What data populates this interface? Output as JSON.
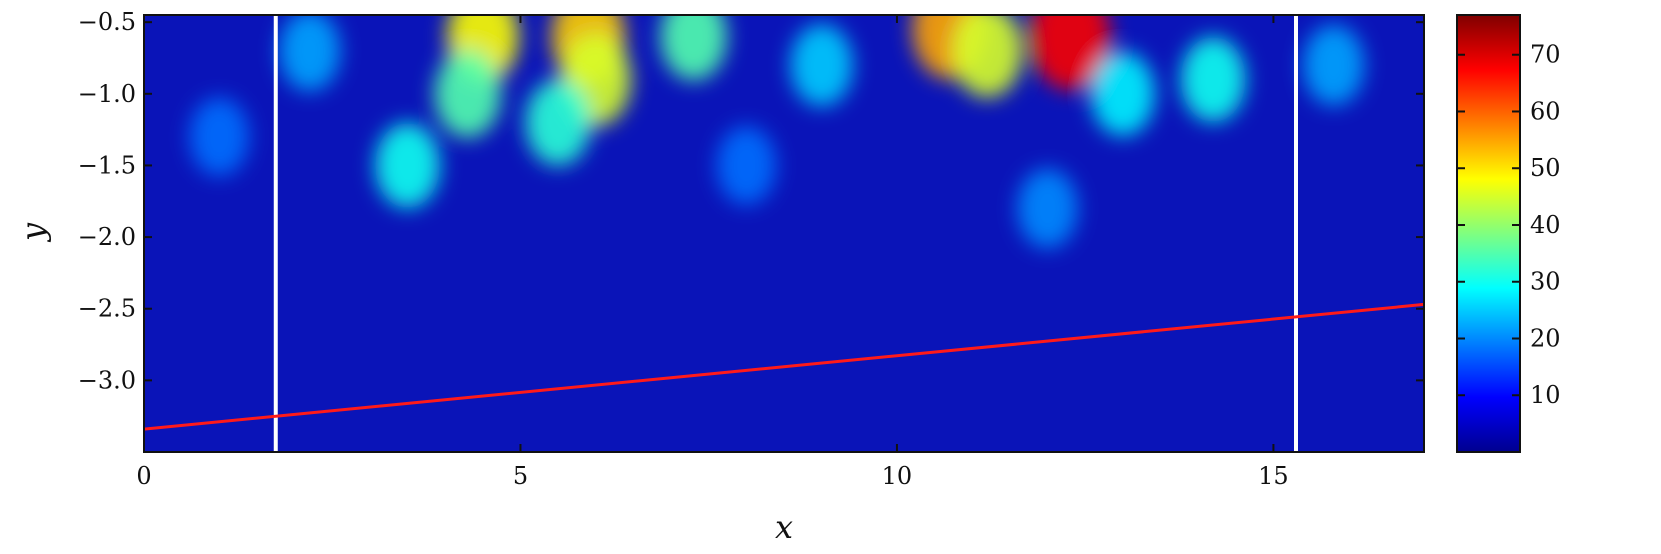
{
  "chart_data": {
    "type": "heatmap",
    "xlabel": "x",
    "ylabel": "y",
    "xlim": [
      0,
      17
    ],
    "ylim": [
      -3.5,
      -0.45
    ],
    "x_ticks": [
      0,
      5,
      10,
      15
    ],
    "x_tick_labels": [
      "0",
      "5",
      "10",
      "15"
    ],
    "y_ticks": [
      -0.5,
      -1.0,
      -1.5,
      -2.0,
      -2.5,
      -3.0
    ],
    "y_tick_labels": [
      "−0.5",
      "−1.0",
      "−1.5",
      "−2.0",
      "−2.5",
      "−3.0"
    ],
    "colormap": "jet",
    "colorbar": {
      "range": [
        0,
        77
      ],
      "ticks": [
        10,
        20,
        30,
        40,
        50,
        60,
        70
      ],
      "tick_labels": [
        "10",
        "20",
        "30",
        "40",
        "50",
        "60",
        "70"
      ]
    },
    "vertical_lines": [
      {
        "x": 1.75,
        "color": "#ffffff"
      },
      {
        "x": 15.3,
        "color": "#ffffff"
      }
    ],
    "line": {
      "x": [
        0,
        17
      ],
      "y": [
        -3.34,
        -2.47
      ],
      "color": "#ff1a1a"
    },
    "hotspots": [
      {
        "x": 4.5,
        "y": -0.6,
        "value": 48
      },
      {
        "x": 4.3,
        "y": -1.0,
        "value": 35
      },
      {
        "x": 3.5,
        "y": -1.5,
        "value": 30
      },
      {
        "x": 5.9,
        "y": -0.6,
        "value": 52
      },
      {
        "x": 6.0,
        "y": -0.9,
        "value": 45
      },
      {
        "x": 5.5,
        "y": -1.2,
        "value": 32
      },
      {
        "x": 7.3,
        "y": -0.6,
        "value": 35
      },
      {
        "x": 10.7,
        "y": -0.55,
        "value": 55
      },
      {
        "x": 11.2,
        "y": -0.7,
        "value": 45
      },
      {
        "x": 12.3,
        "y": -0.6,
        "value": 68
      },
      {
        "x": 13.0,
        "y": -1.0,
        "value": 28
      },
      {
        "x": 14.2,
        "y": -0.9,
        "value": 30
      },
      {
        "x": 9.0,
        "y": -0.8,
        "value": 25
      },
      {
        "x": 2.2,
        "y": -0.7,
        "value": 22
      },
      {
        "x": 1.0,
        "y": -1.3,
        "value": 18
      },
      {
        "x": 8.0,
        "y": -1.5,
        "value": 18
      },
      {
        "x": 12.0,
        "y": -1.8,
        "value": 20
      },
      {
        "x": 15.8,
        "y": -0.8,
        "value": 22
      }
    ]
  }
}
